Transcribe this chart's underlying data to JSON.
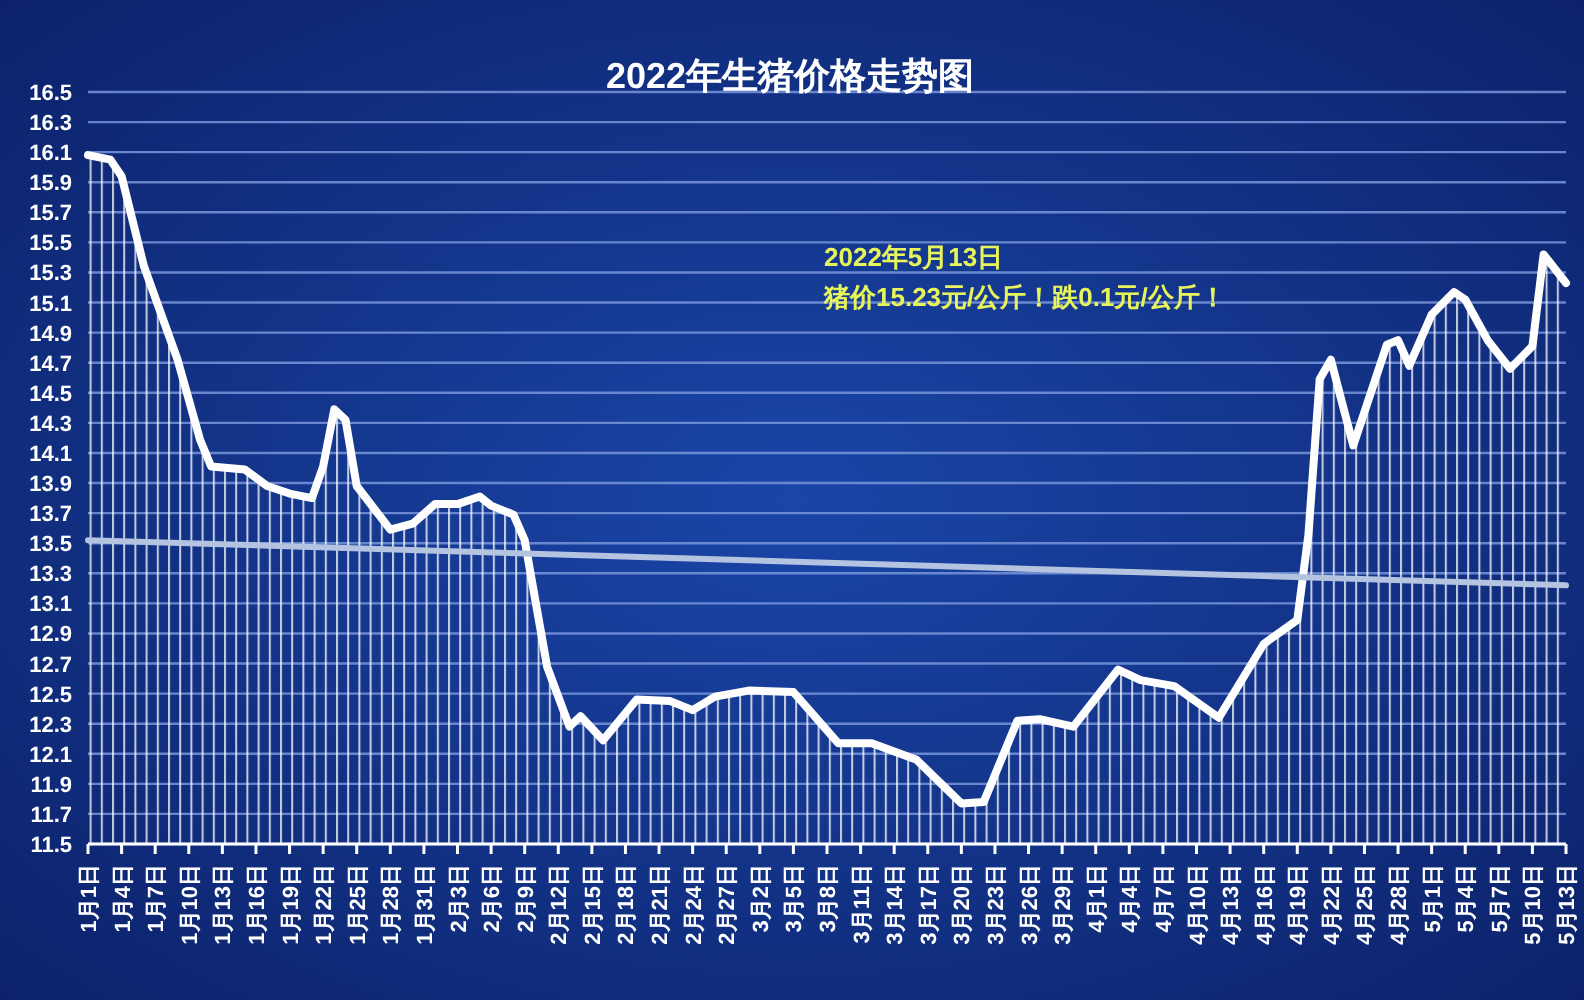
{
  "chart_data": {
    "type": "area",
    "title": "2022年生猪价格走势图",
    "xlim": [
      "2022-01-01",
      "2022-05-13"
    ],
    "xticks": [
      {
        "value": "2022-01-01",
        "label": "1月1日"
      },
      {
        "value": "2022-01-04",
        "label": "1月4日"
      },
      {
        "value": "2022-01-07",
        "label": "1月7日"
      },
      {
        "value": "2022-01-10",
        "label": "1月10日"
      },
      {
        "value": "2022-01-13",
        "label": "1月13日"
      },
      {
        "value": "2022-01-16",
        "label": "1月16日"
      },
      {
        "value": "2022-01-19",
        "label": "1月19日"
      },
      {
        "value": "2022-01-22",
        "label": "1月22日"
      },
      {
        "value": "2022-01-25",
        "label": "1月25日"
      },
      {
        "value": "2022-01-28",
        "label": "1月28日"
      },
      {
        "value": "2022-01-31",
        "label": "1月31日"
      },
      {
        "value": "2022-02-03",
        "label": "2月3日"
      },
      {
        "value": "2022-02-06",
        "label": "2月6日"
      },
      {
        "value": "2022-02-09",
        "label": "2月9日"
      },
      {
        "value": "2022-02-12",
        "label": "2月12日"
      },
      {
        "value": "2022-02-15",
        "label": "2月15日"
      },
      {
        "value": "2022-02-18",
        "label": "2月18日"
      },
      {
        "value": "2022-02-21",
        "label": "2月21日"
      },
      {
        "value": "2022-02-24",
        "label": "2月24日"
      },
      {
        "value": "2022-02-27",
        "label": "2月27日"
      },
      {
        "value": "2022-03-02",
        "label": "3月2日"
      },
      {
        "value": "2022-03-05",
        "label": "3月5日"
      },
      {
        "value": "2022-03-08",
        "label": "3月8日"
      },
      {
        "value": "2022-03-11",
        "label": "3月11日"
      },
      {
        "value": "2022-03-14",
        "label": "3月14日"
      },
      {
        "value": "2022-03-17",
        "label": "3月17日"
      },
      {
        "value": "2022-03-20",
        "label": "3月20日"
      },
      {
        "value": "2022-03-23",
        "label": "3月23日"
      },
      {
        "value": "2022-03-26",
        "label": "3月26日"
      },
      {
        "value": "2022-03-29",
        "label": "3月29日"
      },
      {
        "value": "2022-04-01",
        "label": "4月1日"
      },
      {
        "value": "2022-04-04",
        "label": "4月4日"
      },
      {
        "value": "2022-04-07",
        "label": "4月7日"
      },
      {
        "value": "2022-04-10",
        "label": "4月10日"
      },
      {
        "value": "2022-04-13",
        "label": "4月13日"
      },
      {
        "value": "2022-04-16",
        "label": "4月16日"
      },
      {
        "value": "2022-04-19",
        "label": "4月19日"
      },
      {
        "value": "2022-04-22",
        "label": "4月22日"
      },
      {
        "value": "2022-04-25",
        "label": "4月25日"
      },
      {
        "value": "2022-04-28",
        "label": "4月28日"
      },
      {
        "value": "2022-05-01",
        "label": "5月1日"
      },
      {
        "value": "2022-05-04",
        "label": "5月4日"
      },
      {
        "value": "2022-05-07",
        "label": "5月7日"
      },
      {
        "value": "2022-05-10",
        "label": "5月10日"
      },
      {
        "value": "2022-05-13",
        "label": "5月13日"
      }
    ],
    "ylim": [
      11.5,
      16.5
    ],
    "yticks": [
      11.5,
      11.7,
      11.9,
      12.1,
      12.3,
      12.5,
      12.7,
      12.9,
      13.1,
      13.3,
      13.5,
      13.7,
      13.9,
      14.1,
      14.3,
      14.5,
      14.7,
      14.9,
      15.1,
      15.3,
      15.5,
      15.7,
      15.9,
      16.1,
      16.3,
      16.5
    ],
    "grid": "y",
    "series": [
      {
        "type": "area",
        "color": "#ffffff",
        "x": [
          "2022-01-01",
          "2022-01-03",
          "2022-01-04",
          "2022-01-06",
          "2022-01-09",
          "2022-01-11",
          "2022-01-12",
          "2022-01-15",
          "2022-01-17",
          "2022-01-19",
          "2022-01-21",
          "2022-01-22",
          "2022-01-23",
          "2022-01-24",
          "2022-01-25",
          "2022-01-28",
          "2022-01-30",
          "2022-02-01",
          "2022-02-03",
          "2022-02-05",
          "2022-02-06",
          "2022-02-08",
          "2022-02-09",
          "2022-02-11",
          "2022-02-13",
          "2022-02-14",
          "2022-02-16",
          "2022-02-19",
          "2022-02-22",
          "2022-02-24",
          "2022-02-26",
          "2022-03-01",
          "2022-03-05",
          "2022-03-09",
          "2022-03-12",
          "2022-03-16",
          "2022-03-20",
          "2022-03-22",
          "2022-03-25",
          "2022-03-27",
          "2022-03-30",
          "2022-04-03",
          "2022-04-05",
          "2022-04-08",
          "2022-04-12",
          "2022-04-16",
          "2022-04-19",
          "2022-04-20",
          "2022-04-21",
          "2022-04-22",
          "2022-04-24",
          "2022-04-27",
          "2022-04-28",
          "2022-04-29",
          "2022-05-01",
          "2022-05-03",
          "2022-05-04",
          "2022-05-06",
          "2022-05-08",
          "2022-05-10",
          "2022-05-11",
          "2022-05-13"
        ],
        "values": [
          16.08,
          16.05,
          15.94,
          15.34,
          14.72,
          14.19,
          14.01,
          13.99,
          13.88,
          13.83,
          13.8,
          14.01,
          14.39,
          14.32,
          13.88,
          13.59,
          13.63,
          13.76,
          13.76,
          13.81,
          13.75,
          13.69,
          13.52,
          12.68,
          12.28,
          12.35,
          12.19,
          12.46,
          12.45,
          12.39,
          12.48,
          12.52,
          12.51,
          12.17,
          12.17,
          12.06,
          11.77,
          11.78,
          12.32,
          12.33,
          12.28,
          12.66,
          12.59,
          12.55,
          12.34,
          12.83,
          12.99,
          13.56,
          14.59,
          14.72,
          14.15,
          14.82,
          14.85,
          14.68,
          15.02,
          15.17,
          15.12,
          14.85,
          14.66,
          14.81,
          15.42,
          15.23
        ]
      },
      {
        "type": "line",
        "color": "#b4c3e0",
        "x": [
          "2022-01-01",
          "2022-05-13"
        ],
        "values": [
          13.52,
          13.22
        ]
      }
    ],
    "annotations": [
      "2022年5月13日",
      "猪价15.23元/公斤！跌0.1元/公斤！"
    ]
  }
}
